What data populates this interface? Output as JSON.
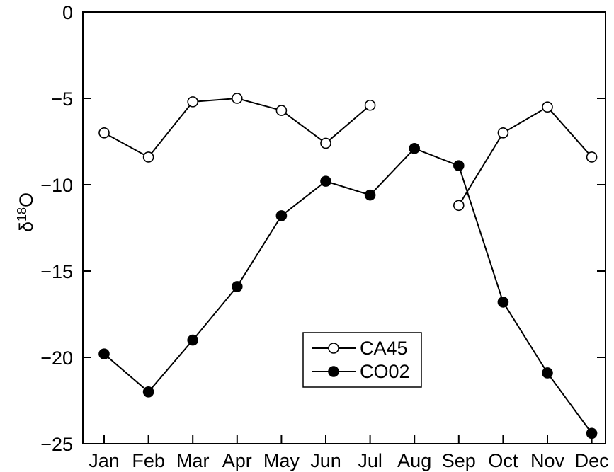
{
  "chart_data": {
    "type": "line",
    "categories": [
      "Jan",
      "Feb",
      "Mar",
      "Apr",
      "May",
      "Jun",
      "Jul",
      "Aug",
      "Sep",
      "Oct",
      "Nov",
      "Dec"
    ],
    "xlabel": "",
    "ylabel": "δ¹⁸O",
    "ylabel_base": "δ",
    "ylabel_superscript": "18",
    "ylabel_tail": "O",
    "ylim": [
      -25,
      0
    ],
    "yticks": [
      0,
      -5,
      -10,
      -15,
      -20,
      -25
    ],
    "ytick_labels": [
      "0",
      "−5",
      "−10",
      "−15",
      "−20",
      "−25"
    ],
    "grid": false,
    "legend_position": "bottom-center",
    "series": [
      {
        "name": "CA45",
        "marker": "open-circle",
        "color": "#000000",
        "segments": [
          [
            [
              0,
              -7.0
            ],
            [
              1,
              -8.4
            ],
            [
              2,
              -5.2
            ],
            [
              3,
              -5.0
            ],
            [
              4,
              -5.7
            ],
            [
              5,
              -7.6
            ],
            [
              6,
              -5.4
            ]
          ],
          [
            [
              8,
              -11.2
            ],
            [
              9,
              -7.0
            ],
            [
              10,
              -5.5
            ],
            [
              11,
              -8.4
            ]
          ]
        ]
      },
      {
        "name": "CO02",
        "marker": "filled-circle",
        "color": "#000000",
        "segments": [
          [
            [
              0,
              -19.8
            ],
            [
              1,
              -22.0
            ],
            [
              2,
              -19.0
            ],
            [
              3,
              -15.9
            ],
            [
              4,
              -11.8
            ],
            [
              5,
              -9.8
            ],
            [
              6,
              -10.6
            ],
            [
              7,
              -7.9
            ],
            [
              8,
              -8.9
            ],
            [
              9,
              -16.8
            ],
            [
              10,
              -20.9
            ],
            [
              11,
              -24.4
            ]
          ]
        ]
      }
    ]
  }
}
